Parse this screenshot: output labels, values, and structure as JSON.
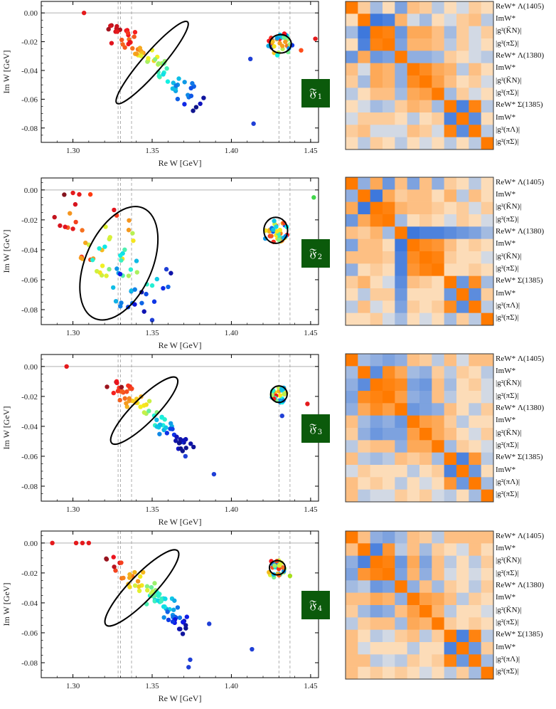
{
  "figure": {
    "panels": [
      {
        "badge": {
          "glyph": "𝔉",
          "index": "1"
        }
      },
      {
        "badge": {
          "glyph": "𝔉",
          "index": "2"
        }
      },
      {
        "badge": {
          "glyph": "𝔉",
          "index": "3"
        }
      },
      {
        "badge": {
          "glyph": "𝔉",
          "index": "4"
        }
      }
    ],
    "heatmap_row_labels": [
      "ReW* Λ(1405)",
      "ImW*",
      "|g²(K̄N)|",
      "|g²(πΣ)|",
      "ReW* Λ(1380)",
      "ImW*",
      "|g²(K̄N)|",
      "|g²(πΣ)|",
      "ReW* Σ(1385)",
      "ImW*",
      "|g²(πΛ)|",
      "|g²(πΣ)|"
    ],
    "colors": {
      "axis": "#000000",
      "zero_line": "#b0b0b0",
      "dashed": "#9a9a9a",
      "ellipse": "#000000",
      "badge_bg": "#0b5a0b",
      "heat_neg": "#2f6fdb",
      "heat_pos": "#ff7a00",
      "heat_mid": "#fbf4e6"
    }
  },
  "chart_data": [
    {
      "type": "scatter",
      "panel": 1,
      "xlabel": "Re W [GeV]",
      "ylabel": "Im W [GeV]",
      "xlim": [
        1.28,
        1.455
      ],
      "ylim": [
        -0.09,
        0.008
      ],
      "xticks": [
        "1.30",
        "1.35",
        "1.40",
        "1.45"
      ],
      "yticks": [
        "0.00",
        "-0.02",
        "-0.04",
        "-0.06",
        "-0.08"
      ],
      "vlines": [
        1.3285,
        1.33,
        1.337,
        1.43,
        1.437
      ],
      "ellipses": [
        {
          "cx": 1.35,
          "cy": -0.0345,
          "rx": 0.034,
          "ry": 0.0062,
          "angle_deg": -49
        },
        {
          "cx": 1.431,
          "cy": -0.0215,
          "rx": 0.0068,
          "ry": 0.0058,
          "angle_deg": 0
        }
      ],
      "clusters": [
        {
          "start": [
            1.325,
            -0.01
          ],
          "end": [
            1.383,
            -0.066
          ],
          "n": 75,
          "spread": 0.006,
          "seed": 11
        },
        {
          "center": [
            1.431,
            -0.022
          ],
          "r": [
            0.008,
            0.008
          ],
          "n": 35,
          "seed": 12
        }
      ],
      "points": [
        [
          1.307,
          0.0,
          "#e41a1c"
        ],
        [
          1.328,
          -0.013,
          "#e41a1c"
        ],
        [
          1.414,
          -0.077,
          "#1f3fd6"
        ],
        [
          1.412,
          -0.032,
          "#1f3fd6"
        ],
        [
          1.444,
          -0.026,
          "#ff4d1a"
        ],
        [
          1.453,
          -0.018,
          "#e41a1c"
        ]
      ]
    },
    {
      "type": "scatter",
      "panel": 2,
      "xlabel": "Re W [GeV]",
      "ylabel": "Im W [GeV]",
      "xlim": [
        1.28,
        1.455
      ],
      "ylim": [
        -0.09,
        0.008
      ],
      "xticks": [
        "1.30",
        "1.35",
        "1.40",
        "1.45"
      ],
      "yticks": [
        "0.00",
        "-0.02",
        "-0.04",
        "-0.06",
        "-0.08"
      ],
      "vlines": [
        1.3285,
        1.33,
        1.337,
        1.43,
        1.437
      ],
      "ellipses": [
        {
          "cx": 1.329,
          "cy": -0.049,
          "rx": 0.038,
          "ry": 0.021,
          "angle_deg": -66
        },
        {
          "cx": 1.428,
          "cy": -0.027,
          "rx": 0.0075,
          "ry": 0.0082,
          "angle_deg": 0
        }
      ],
      "clusters": [
        {
          "start": [
            1.305,
            -0.018
          ],
          "end": [
            1.35,
            -0.075
          ],
          "n": 70,
          "spread": 0.018,
          "seed": 21
        },
        {
          "center": [
            1.428,
            -0.028
          ],
          "r": [
            0.008,
            0.008
          ],
          "n": 35,
          "seed": 22
        }
      ],
      "points": [
        [
          1.3,
          -0.002,
          "#e41a1c"
        ],
        [
          1.304,
          -0.003,
          "#e41a1c"
        ],
        [
          1.311,
          -0.003,
          "#ff3a10"
        ],
        [
          1.3,
          -0.026,
          "#e41a1c"
        ],
        [
          1.359,
          -0.053,
          "#1f3fd6"
        ],
        [
          1.35,
          -0.087,
          "#1f3fd6"
        ],
        [
          1.452,
          -0.005,
          "#41d64a"
        ]
      ]
    },
    {
      "type": "scatter",
      "panel": 3,
      "xlabel": "Re W [GeV]",
      "ylabel": "Im W [GeV]",
      "xlim": [
        1.28,
        1.455
      ],
      "ylim": [
        -0.09,
        0.008
      ],
      "xticks": [
        "1.30",
        "1.35",
        "1.40",
        "1.45"
      ],
      "yticks": [
        "0.00",
        "-0.02",
        "-0.04",
        "-0.06",
        "-0.08"
      ],
      "vlines": [
        1.3285,
        1.33,
        1.337,
        1.43,
        1.437
      ],
      "ellipses": [
        {
          "cx": 1.345,
          "cy": -0.0295,
          "rx": 0.029,
          "ry": 0.0075,
          "angle_deg": -45
        },
        {
          "cx": 1.43,
          "cy": -0.0185,
          "rx": 0.0052,
          "ry": 0.0052,
          "angle_deg": 0
        }
      ],
      "clusters": [
        {
          "start": [
            1.324,
            -0.008
          ],
          "end": [
            1.372,
            -0.055
          ],
          "n": 70,
          "spread": 0.005,
          "seed": 31
        },
        {
          "center": [
            1.43,
            -0.019
          ],
          "r": [
            0.005,
            0.006
          ],
          "n": 30,
          "seed": 32
        }
      ],
      "points": [
        [
          1.296,
          0.0,
          "#e41a1c"
        ],
        [
          1.389,
          -0.072,
          "#1f3fd6"
        ],
        [
          1.371,
          -0.06,
          "#1f3fd6"
        ],
        [
          1.448,
          -0.025,
          "#e41a1c"
        ],
        [
          1.432,
          -0.033,
          "#1f3fd6"
        ]
      ]
    },
    {
      "type": "scatter",
      "panel": 4,
      "xlabel": "Re W [GeV]",
      "ylabel": "Im W [GeV]",
      "xlim": [
        1.28,
        1.455
      ],
      "ylim": [
        -0.09,
        0.008
      ],
      "xticks": [
        "1.30",
        "1.35",
        "1.40",
        "1.45"
      ],
      "yticks": [
        "0.00",
        "-0.02",
        "-0.04",
        "-0.06",
        "-0.08"
      ],
      "vlines": [
        1.3285,
        1.33,
        1.337,
        1.43,
        1.437
      ],
      "ellipses": [
        {
          "cx": 1.3435,
          "cy": -0.03,
          "rx": 0.0325,
          "ry": 0.008,
          "angle_deg": -46
        },
        {
          "cx": 1.429,
          "cy": -0.0165,
          "rx": 0.005,
          "ry": 0.0045,
          "angle_deg": 0
        }
      ],
      "clusters": [
        {
          "start": [
            1.323,
            -0.008
          ],
          "end": [
            1.374,
            -0.058
          ],
          "n": 75,
          "spread": 0.005,
          "seed": 41
        },
        {
          "center": [
            1.428,
            -0.017
          ],
          "r": [
            0.006,
            0.006
          ],
          "n": 28,
          "seed": 42
        }
      ],
      "points": [
        [
          1.287,
          0.0,
          "#e41a1c"
        ],
        [
          1.302,
          0.0,
          "#e41a1c"
        ],
        [
          1.306,
          0.0,
          "#e41a1c"
        ],
        [
          1.31,
          0.0,
          "#e41a1c"
        ],
        [
          1.373,
          -0.083,
          "#1f3fd6"
        ],
        [
          1.374,
          -0.078,
          "#1f3fd6"
        ],
        [
          1.386,
          -0.054,
          "#1f3fd6"
        ],
        [
          1.413,
          -0.071,
          "#1f3fd6"
        ],
        [
          1.437,
          -0.022,
          "#a6e01a"
        ]
      ]
    },
    {
      "type": "heatmap",
      "panel": 1,
      "values": [
        [
          1.0,
          0.2,
          -0.3,
          0.1,
          -0.5,
          0.3,
          0.2,
          -0.2,
          0.1,
          -0.1,
          0.2,
          0.1
        ],
        [
          0.1,
          1.0,
          -0.9,
          -0.8,
          0.4,
          -0.1,
          -0.3,
          0.1,
          -0.1,
          0.2,
          0.3,
          -0.2
        ],
        [
          -0.3,
          -0.9,
          1.0,
          0.9,
          -0.6,
          0.5,
          0.5,
          0.3,
          -0.3,
          0.2,
          -0.1,
          0.2
        ],
        [
          0.1,
          -0.8,
          0.9,
          1.0,
          -0.5,
          0.4,
          0.4,
          0.3,
          -0.2,
          0.2,
          -0.1,
          0.1
        ],
        [
          -0.6,
          0.5,
          -0.6,
          -0.5,
          1.0,
          -0.4,
          -0.4,
          -0.3,
          0.2,
          0.1,
          -0.1,
          -0.2
        ],
        [
          0.3,
          -0.1,
          0.5,
          0.4,
          -0.4,
          1.0,
          0.8,
          0.5,
          0.4,
          -0.2,
          0.3,
          0.1
        ],
        [
          0.2,
          -0.3,
          0.5,
          0.4,
          -0.4,
          0.8,
          1.0,
          0.6,
          0.3,
          0.1,
          0.2,
          -0.1
        ],
        [
          -0.2,
          0.1,
          0.3,
          0.3,
          -0.3,
          0.5,
          0.6,
          1.0,
          -0.3,
          0.2,
          -0.1,
          0.1
        ],
        [
          0.1,
          -0.1,
          -0.3,
          -0.2,
          0.2,
          0.4,
          0.3,
          -0.3,
          1.0,
          -0.8,
          0.9,
          -0.2
        ],
        [
          -0.1,
          0.2,
          0.2,
          0.2,
          0.1,
          -0.2,
          0.1,
          0.2,
          -0.8,
          1.0,
          -0.7,
          0.1
        ],
        [
          0.2,
          0.3,
          -0.1,
          -0.1,
          -0.1,
          0.3,
          0.2,
          -0.1,
          0.9,
          -0.7,
          1.0,
          -0.2
        ],
        [
          0.1,
          -0.2,
          0.2,
          0.1,
          -0.2,
          0.1,
          -0.1,
          0.1,
          -0.2,
          0.1,
          -0.2,
          1.0
        ]
      ]
    },
    {
      "type": "heatmap",
      "panel": 2,
      "values": [
        [
          1.0,
          -0.4,
          0.5,
          -0.6,
          0.3,
          -0.5,
          0.3,
          -0.4,
          0.2,
          0.1,
          -0.2,
          0.1
        ],
        [
          -0.4,
          1.0,
          -0.9,
          0.5,
          0.2,
          0.3,
          0.3,
          0.1,
          0.4,
          -0.2,
          0.3,
          0.1
        ],
        [
          0.5,
          -0.9,
          1.0,
          0.9,
          0.4,
          0.3,
          0.3,
          0.2,
          0.1,
          0.2,
          -0.1,
          0.2
        ],
        [
          -0.6,
          0.5,
          0.9,
          1.0,
          -0.3,
          0.1,
          0.2,
          0.1,
          -0.1,
          0.2,
          0.1,
          -0.1
        ],
        [
          0.3,
          0.2,
          0.4,
          -0.3,
          1.0,
          -0.9,
          -0.8,
          -0.8,
          -0.7,
          -0.6,
          -0.5,
          -0.3
        ],
        [
          -0.5,
          0.3,
          0.3,
          0.1,
          -0.9,
          1.0,
          0.8,
          0.7,
          0.3,
          0.1,
          0.2,
          0.1
        ],
        [
          0.3,
          0.3,
          0.3,
          0.2,
          -0.8,
          0.8,
          1.0,
          0.9,
          0.2,
          0.1,
          0.1,
          -0.1
        ],
        [
          -0.4,
          0.1,
          0.2,
          0.1,
          -0.8,
          0.7,
          0.9,
          1.0,
          0.1,
          0.1,
          0.2,
          0.1
        ],
        [
          0.2,
          0.4,
          0.1,
          -0.1,
          -0.7,
          0.3,
          0.2,
          0.1,
          1.0,
          -0.6,
          0.8,
          -0.3
        ],
        [
          0.1,
          -0.2,
          0.2,
          0.2,
          -0.6,
          0.1,
          0.1,
          0.1,
          -0.6,
          1.0,
          -0.7,
          0.2
        ],
        [
          -0.2,
          0.3,
          -0.1,
          0.1,
          -0.5,
          0.2,
          0.1,
          0.2,
          0.8,
          -0.7,
          1.0,
          -0.2
        ],
        [
          0.1,
          0.1,
          0.2,
          -0.1,
          -0.3,
          0.1,
          -0.1,
          0.1,
          -0.3,
          0.2,
          -0.2,
          1.0
        ]
      ]
    },
    {
      "type": "heatmap",
      "panel": 3,
      "values": [
        [
          1.0,
          -0.3,
          -0.4,
          -0.5,
          -0.4,
          0.3,
          0.2,
          -0.2,
          0.3,
          -0.1,
          0.3,
          0.3
        ],
        [
          -0.3,
          1.0,
          -0.7,
          0.8,
          0.5,
          -0.3,
          -0.4,
          0.2,
          -0.2,
          0.2,
          0.1,
          -0.2
        ],
        [
          -0.4,
          -0.7,
          1.0,
          0.9,
          0.8,
          -0.5,
          -0.6,
          0.3,
          -0.3,
          0.1,
          0.2,
          -0.1
        ],
        [
          -0.5,
          0.8,
          0.9,
          1.0,
          0.6,
          -0.4,
          -0.5,
          0.3,
          -0.2,
          0.1,
          0.1,
          -0.1
        ],
        [
          -0.4,
          0.5,
          0.8,
          0.6,
          1.0,
          -0.6,
          -0.5,
          -0.4,
          0.3,
          0.1,
          -0.2,
          0.2
        ],
        [
          0.3,
          -0.3,
          -0.5,
          -0.4,
          -0.6,
          1.0,
          0.6,
          0.5,
          0.2,
          -0.2,
          0.1,
          0.1
        ],
        [
          0.2,
          -0.4,
          -0.6,
          -0.5,
          -0.5,
          0.6,
          1.0,
          0.5,
          0.3,
          0.1,
          -0.1,
          0.2
        ],
        [
          -0.2,
          0.2,
          0.3,
          0.3,
          -0.4,
          0.5,
          0.5,
          1.0,
          -0.3,
          0.2,
          0.1,
          -0.1
        ],
        [
          0.3,
          -0.2,
          -0.3,
          -0.2,
          0.3,
          0.2,
          0.3,
          -0.3,
          1.0,
          -0.8,
          0.7,
          -0.2
        ],
        [
          -0.1,
          0.2,
          0.1,
          0.1,
          0.1,
          -0.2,
          0.1,
          0.2,
          -0.8,
          1.0,
          -0.6,
          0.1
        ],
        [
          0.3,
          0.1,
          0.2,
          0.1,
          -0.2,
          0.1,
          -0.1,
          0.1,
          0.7,
          -0.6,
          1.0,
          -0.3
        ],
        [
          0.3,
          -0.2,
          -0.1,
          -0.1,
          0.2,
          0.1,
          0.2,
          -0.1,
          -0.2,
          0.1,
          -0.3,
          1.0
        ]
      ]
    },
    {
      "type": "heatmap",
      "panel": 4,
      "values": [
        [
          1.0,
          0.3,
          -0.4,
          -0.5,
          -0.3,
          0.3,
          0.2,
          -0.2,
          0.3,
          0.3,
          0.3,
          0.3
        ],
        [
          0.3,
          1.0,
          -0.8,
          0.7,
          -0.2,
          0.3,
          -0.3,
          0.2,
          0.1,
          -0.1,
          0.3,
          0.1
        ],
        [
          -0.4,
          -0.8,
          1.0,
          0.9,
          -0.6,
          0.5,
          -0.5,
          0.3,
          -0.2,
          0.1,
          -0.2,
          0.2
        ],
        [
          -0.5,
          0.7,
          0.9,
          1.0,
          -0.5,
          0.4,
          -0.4,
          0.3,
          -0.1,
          0.1,
          -0.1,
          0.1
        ],
        [
          -0.3,
          -0.2,
          -0.6,
          -0.5,
          1.0,
          -0.4,
          0.3,
          -0.3,
          0.2,
          0.1,
          -0.2,
          0.2
        ],
        [
          0.3,
          0.3,
          0.5,
          0.4,
          -0.4,
          1.0,
          0.6,
          0.5,
          0.3,
          -0.2,
          0.2,
          0.1
        ],
        [
          0.2,
          -0.3,
          -0.5,
          -0.4,
          0.3,
          0.6,
          1.0,
          0.4,
          -0.2,
          0.1,
          0.1,
          -0.1
        ],
        [
          -0.2,
          0.2,
          0.3,
          0.3,
          -0.3,
          0.5,
          0.4,
          1.0,
          0.2,
          0.1,
          0.2,
          0.1
        ],
        [
          0.3,
          0.1,
          -0.2,
          -0.1,
          0.2,
          0.3,
          -0.2,
          0.2,
          1.0,
          -0.8,
          0.9,
          -0.2
        ],
        [
          0.3,
          -0.1,
          0.1,
          0.1,
          0.1,
          -0.2,
          0.1,
          0.1,
          -0.8,
          1.0,
          -0.6,
          0.2
        ],
        [
          0.3,
          0.3,
          -0.2,
          -0.1,
          -0.2,
          0.2,
          0.1,
          0.2,
          0.9,
          -0.6,
          1.0,
          -0.3
        ],
        [
          0.3,
          0.1,
          0.2,
          0.1,
          0.2,
          0.1,
          -0.1,
          0.1,
          -0.2,
          0.2,
          -0.3,
          1.0
        ]
      ]
    }
  ]
}
